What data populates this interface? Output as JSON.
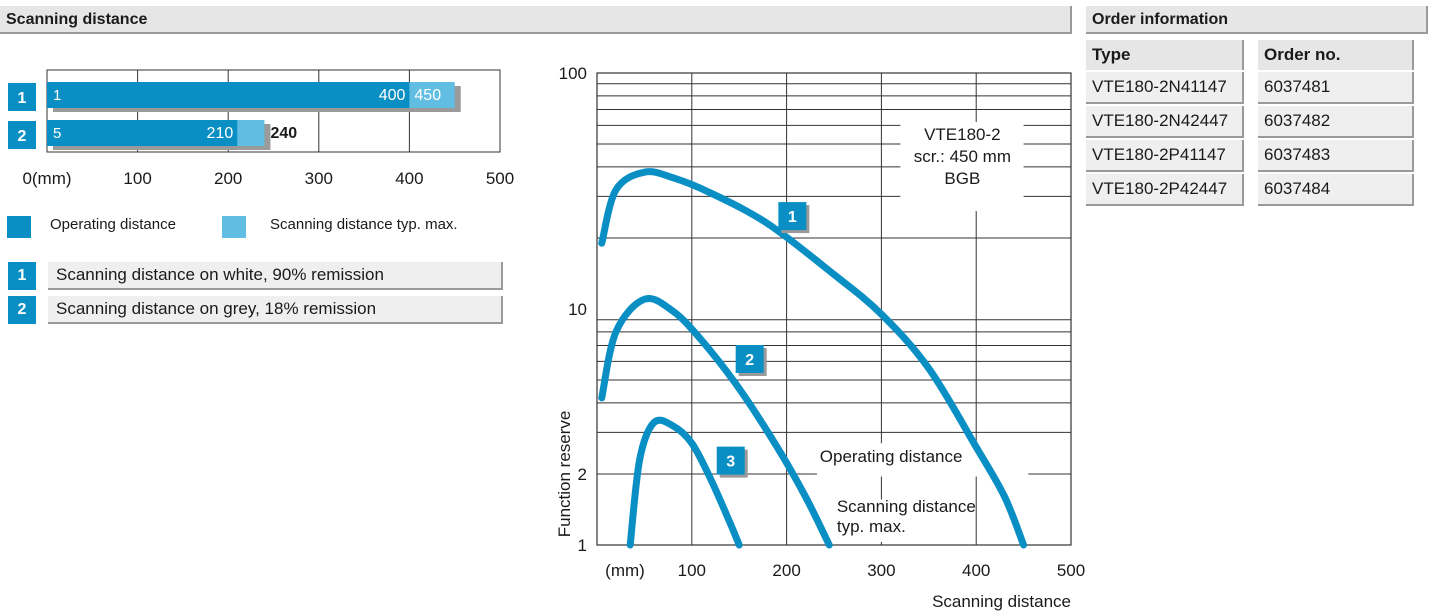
{
  "section_title": "Scanning distance",
  "order": {
    "title": "Order information",
    "col_type": "Type",
    "col_order": "Order no.",
    "rows": [
      {
        "type": "VTE180-2N41147",
        "order_no": "6037481"
      },
      {
        "type": "VTE180-2N42447",
        "order_no": "6037482"
      },
      {
        "type": "VTE180-2P41147",
        "order_no": "6037483"
      },
      {
        "type": "VTE180-2P42447",
        "order_no": "6037484"
      }
    ]
  },
  "legend": {
    "operating": "Operating distance",
    "scanning": "Scanning distance typ. max.",
    "operating_color": "#0a8fc4",
    "scanning_color": "#62bde3"
  },
  "references": [
    {
      "num": "1",
      "text": "Scanning distance on white, 90% remission"
    },
    {
      "num": "2",
      "text": "Scanning distance on grey, 18% remission"
    }
  ],
  "chart_data": [
    {
      "type": "bar",
      "orientation": "horizontal",
      "xlim": [
        0,
        500
      ],
      "x_ticks": [
        "0(mm)",
        "100",
        "200",
        "300",
        "400",
        "500"
      ],
      "tick_values": [
        0,
        100,
        200,
        300,
        400,
        500
      ],
      "bars": [
        {
          "label": "1",
          "start": 1,
          "operating": 400,
          "scanning_max": 450,
          "start_label": "1",
          "operating_label": "400",
          "scanning_label": "450"
        },
        {
          "label": "2",
          "start": 5,
          "operating": 210,
          "scanning_max": 240,
          "start_label": "5",
          "operating_label": "210",
          "scanning_label": "240"
        }
      ]
    },
    {
      "type": "line",
      "y_scale": "log",
      "xlim": [
        0,
        500
      ],
      "ylim": [
        1,
        100
      ],
      "x_ticks": [
        "(mm)",
        "100",
        "200",
        "300",
        "400",
        "500"
      ],
      "x_tick_values": [
        0,
        100,
        200,
        300,
        400,
        500
      ],
      "y_ticks": [
        "1",
        "2",
        "10",
        "100"
      ],
      "y_tick_values": [
        1,
        2,
        10,
        100
      ],
      "xlabel": "Scanning distance",
      "ylabel": "Function reserve",
      "annotation": [
        "VTE180-2",
        "scr.: 450 mm",
        "BGB"
      ],
      "operating_label": "Operating distance",
      "scanning_label": [
        "Scanning distance",
        "typ. max."
      ],
      "series": [
        {
          "marker": "1",
          "x": [
            5,
            20,
            50,
            80,
            120,
            180,
            250,
            300,
            350,
            400,
            430,
            450
          ],
          "y": [
            19,
            32,
            38,
            36,
            31,
            23,
            14,
            9.5,
            5.6,
            2.6,
            1.6,
            1
          ],
          "marker_at": [
            205,
            25
          ]
        },
        {
          "marker": "2",
          "x": [
            5,
            20,
            50,
            80,
            110,
            150,
            190,
            220,
            245
          ],
          "y": [
            4.2,
            8,
            11,
            9.8,
            7.4,
            4.6,
            2.6,
            1.6,
            1
          ],
          "marker_at": [
            160,
            6.2
          ]
        },
        {
          "marker": "3",
          "x": [
            35,
            45,
            60,
            80,
            100,
            120,
            140,
            150
          ],
          "y": [
            1,
            2.3,
            3.3,
            3.2,
            2.7,
            1.9,
            1.25,
            1
          ],
          "marker_at": [
            140,
            2.3
          ]
        }
      ]
    }
  ]
}
